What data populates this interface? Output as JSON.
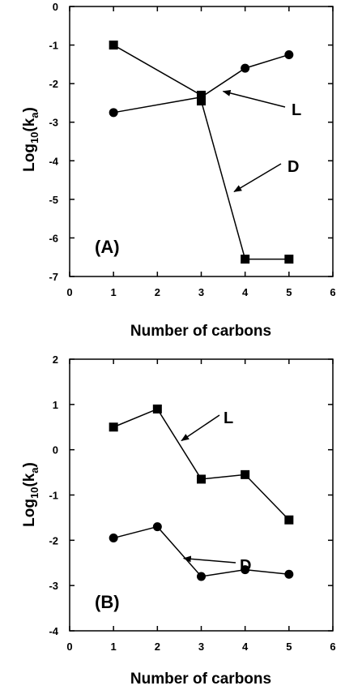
{
  "chart_data": [
    {
      "type": "line",
      "panel_label": "(A)",
      "xlabel": "Number of carbons",
      "ylabel": "Log10(ka)",
      "ylabel_parts": {
        "main": "Log",
        "sub1": "10",
        "open": "(k",
        "sub2": "a",
        "close": ")"
      },
      "xlim": [
        0,
        6
      ],
      "ylim": [
        -7,
        0
      ],
      "xticks": [
        0,
        1,
        2,
        3,
        4,
        5,
        6
      ],
      "yticks": [
        0,
        -1,
        -2,
        -3,
        -4,
        -5,
        -6,
        -7
      ],
      "grid": false,
      "series": [
        {
          "marker": "square",
          "x": [
            1,
            3,
            3,
            4,
            5
          ],
          "y": [
            -1.0,
            -2.3,
            -2.45,
            -6.55,
            -6.55
          ]
        },
        {
          "marker": "circle",
          "x": [
            1,
            3,
            4,
            5
          ],
          "y": [
            -2.75,
            -2.35,
            -1.6,
            -1.25
          ]
        }
      ],
      "annotations": [
        {
          "text": "L",
          "point_to": [
            3.5,
            -2.2
          ]
        },
        {
          "text": "D",
          "point_to": [
            3.75,
            -4.8
          ]
        }
      ]
    },
    {
      "type": "line",
      "panel_label": "(B)",
      "xlabel": "Number of carbons",
      "ylabel": "Log10(ka)",
      "ylabel_parts": {
        "main": "Log",
        "sub1": "10",
        "open": "(k",
        "sub2": "a",
        "close": ")"
      },
      "xlim": [
        0,
        6
      ],
      "ylim": [
        -4,
        2
      ],
      "xticks": [
        0,
        1,
        2,
        3,
        4,
        5,
        6
      ],
      "yticks": [
        2,
        1,
        0,
        -1,
        -2,
        -3,
        -4
      ],
      "grid": false,
      "series": [
        {
          "marker": "square",
          "x": [
            1,
            2,
            3,
            4,
            5
          ],
          "y": [
            0.5,
            0.9,
            -0.65,
            -0.55,
            -1.55
          ]
        },
        {
          "marker": "circle",
          "x": [
            1,
            2,
            3,
            4,
            5
          ],
          "y": [
            -1.95,
            -1.7,
            -2.8,
            -2.65,
            -2.75
          ]
        }
      ],
      "annotations": [
        {
          "text": "L",
          "point_to": [
            2.55,
            0.2
          ]
        },
        {
          "text": "D",
          "point_to": [
            2.6,
            -2.4
          ]
        }
      ]
    }
  ]
}
